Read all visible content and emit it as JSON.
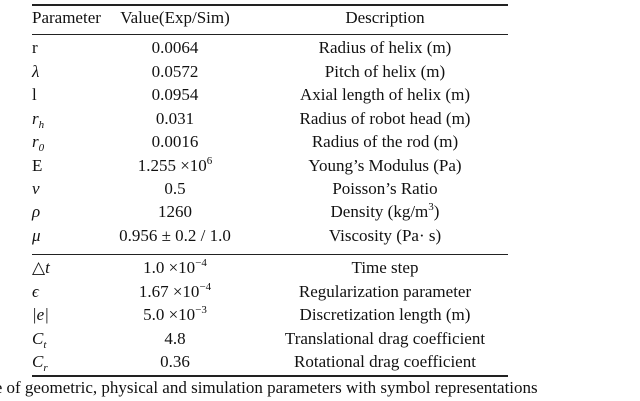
{
  "table": {
    "headers": [
      "Parameter",
      "Value(Exp/Sim)",
      "Description"
    ],
    "rows": [
      {
        "sym": "r",
        "sym_italic": false,
        "sub": "",
        "value": "0.0064",
        "value_sup": "",
        "desc": "Radius of helix (m)",
        "desc_sup": "",
        "desc_end": ""
      },
      {
        "sym": "λ",
        "sym_italic": true,
        "sub": "",
        "value": "0.0572",
        "value_sup": "",
        "desc": "Pitch of helix (m)",
        "desc_sup": "",
        "desc_end": ""
      },
      {
        "sym": "l",
        "sym_italic": false,
        "sub": "",
        "value": "0.0954",
        "value_sup": "",
        "desc": "Axial length of helix (m)",
        "desc_sup": "",
        "desc_end": ""
      },
      {
        "sym": "r",
        "sym_italic": true,
        "sub": "h",
        "value": "0.031",
        "value_sup": "",
        "desc": "Radius of robot head (m)",
        "desc_sup": "",
        "desc_end": ""
      },
      {
        "sym": "r",
        "sym_italic": true,
        "sub": "0",
        "value": "0.0016",
        "value_sup": "",
        "desc": "Radius of the rod (m)",
        "desc_sup": "",
        "desc_end": ""
      },
      {
        "sym": "E",
        "sym_italic": false,
        "sub": "",
        "value": "1.255 ×10",
        "value_sup": "6",
        "desc": "Young’s Modulus (Pa)",
        "desc_sup": "",
        "desc_end": ""
      },
      {
        "sym": "ν",
        "sym_italic": true,
        "sub": "",
        "value": "0.5",
        "value_sup": "",
        "desc": "Poisson’s Ratio",
        "desc_sup": "",
        "desc_end": ""
      },
      {
        "sym": "ρ",
        "sym_italic": true,
        "sub": "",
        "value": "1260",
        "value_sup": "",
        "desc": "Density (kg/m",
        "desc_sup": "3",
        "desc_end": ")"
      },
      {
        "sym": "μ",
        "sym_italic": true,
        "sub": "",
        "value": "0.956 ± 0.2 / 1.0",
        "value_sup": "",
        "desc": "Viscosity (Pa· s)",
        "desc_sup": "",
        "desc_end": ""
      },
      {
        "sym": "△t",
        "sym_italic": true,
        "sub": "",
        "value": "1.0 ×10",
        "value_sup": "−4",
        "desc": "Time step",
        "desc_sup": "",
        "desc_end": ""
      },
      {
        "sym": "ϵ",
        "sym_italic": true,
        "sub": "",
        "value": "1.67 ×10",
        "value_sup": "−4",
        "desc": "Regularization parameter",
        "desc_sup": "",
        "desc_end": ""
      },
      {
        "sym": "|e|",
        "sym_italic": true,
        "sub": "",
        "value": "5.0 ×10",
        "value_sup": "−3",
        "desc": "Discretization length (m)",
        "desc_sup": "",
        "desc_end": ""
      },
      {
        "sym": "C",
        "sym_italic": true,
        "sub": "t",
        "value": "4.8",
        "value_sup": "",
        "desc": "Translational drag coefficient",
        "desc_sup": "",
        "desc_end": ""
      },
      {
        "sym": "C",
        "sym_italic": true,
        "sub": "r",
        "value": "0.36",
        "value_sup": "",
        "desc": "Rotational drag coefficient",
        "desc_sup": "",
        "desc_end": ""
      }
    ]
  },
  "caption": "le of geometric, physical and simulation parameters with symbol representations"
}
